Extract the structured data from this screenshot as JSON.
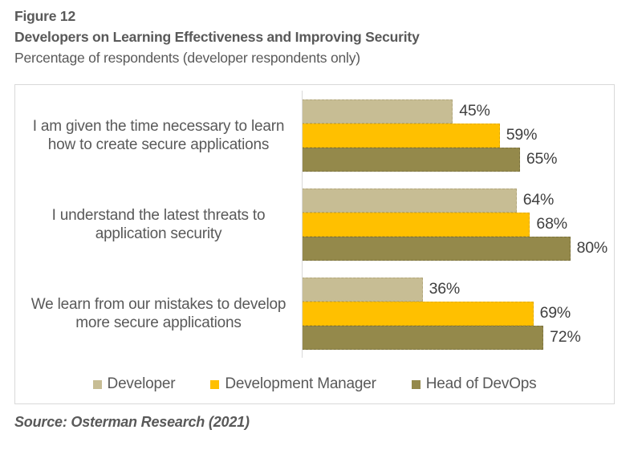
{
  "header": {
    "figure_label": "Figure 12",
    "title": "Developers on Learning Effectiveness and Improving Security",
    "subtitle": "Percentage of respondents (developer respondents only)"
  },
  "source": "Source: Osterman Research (2021)",
  "colors": {
    "frame_border": "#D9D9D9",
    "axis_line": "#D9D9D9",
    "title_text": "#595959",
    "value_text": "#404040"
  },
  "chart_data": {
    "type": "bar",
    "orientation": "horizontal",
    "title": "Developers on Learning Effectiveness and Improving Security",
    "subtitle": "Percentage of respondents (developer respondents only)",
    "categories": [
      "I am given the time necessary to learn how to create secure applications",
      "I understand the latest threats to application security",
      "We learn from our mistakes to develop more secure applications"
    ],
    "series": [
      {
        "name": "Developer",
        "color": "#C7BD94",
        "border_color": "#B2A77C",
        "values": [
          45,
          64,
          36
        ]
      },
      {
        "name": "Development Manager",
        "color": "#FFC000",
        "border_color": "#E2AB00",
        "values": [
          59,
          68,
          69
        ]
      },
      {
        "name": "Head of DevOps",
        "color": "#94894B",
        "border_color": "#7C7340",
        "values": [
          65,
          80,
          72
        ]
      }
    ],
    "value_suffix": "%",
    "data_labels": true,
    "xlim": [
      0,
      93
    ],
    "grid": false,
    "legend_position": "bottom"
  }
}
